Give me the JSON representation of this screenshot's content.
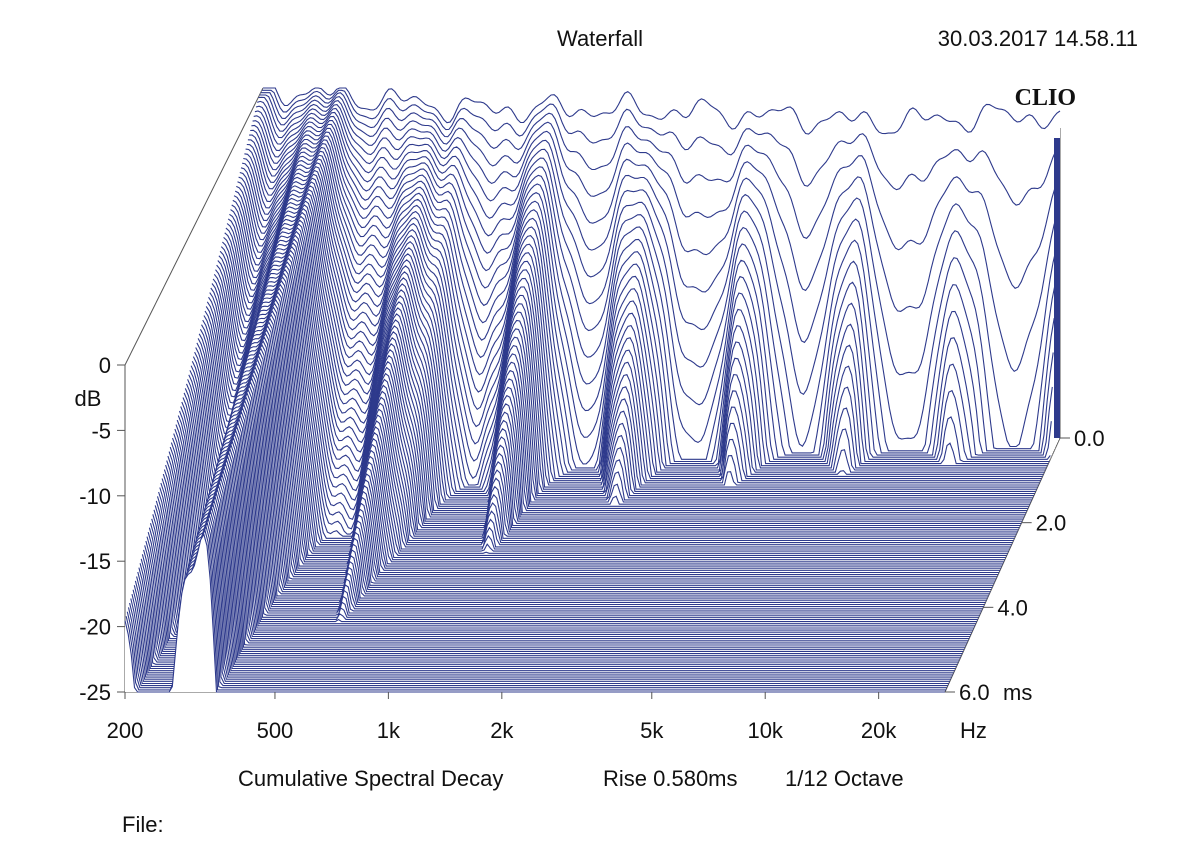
{
  "header": {
    "title": "Waterfall",
    "timestamp": "30.03.2017 14.58.11",
    "logo_text": "CLIO"
  },
  "caption": {
    "method": "Cumulative Spectral Decay",
    "rise": "Rise 0.580ms",
    "smoothing": "1/12 Octave"
  },
  "footer": {
    "file_label": "File:"
  },
  "colors": {
    "trace": "#2e3a8c",
    "axis": "#555555",
    "background": "#ffffff"
  },
  "chart_data": {
    "type": "waterfall",
    "x_axis": {
      "scale": "log",
      "range": [
        200,
        30000
      ],
      "ticks": [
        {
          "value": 200,
          "label": "200"
        },
        {
          "value": 500,
          "label": "500"
        },
        {
          "value": 1000,
          "label": "1k"
        },
        {
          "value": 2000,
          "label": "2k"
        },
        {
          "value": 5000,
          "label": "5k"
        },
        {
          "value": 10000,
          "label": "10k"
        },
        {
          "value": 20000,
          "label": "20k"
        }
      ],
      "unit": "Hz"
    },
    "y_axis": {
      "range": [
        -25,
        0
      ],
      "unit": "dB",
      "ticks": [
        {
          "value": 0,
          "label": "0"
        },
        {
          "value": -5,
          "label": "-5"
        },
        {
          "value": -10,
          "label": "-10"
        },
        {
          "value": -15,
          "label": "-15"
        },
        {
          "value": -20,
          "label": "-20"
        },
        {
          "value": -25,
          "label": "-25"
        }
      ]
    },
    "z_axis": {
      "range": [
        0,
        6
      ],
      "unit": "ms",
      "ticks": [
        {
          "value": 0,
          "label": "0.0"
        },
        {
          "value": 2,
          "label": "2.0"
        },
        {
          "value": 4,
          "label": "4.0"
        },
        {
          "value": 6,
          "label": "6.0"
        }
      ]
    },
    "slice_count": 120,
    "initial_response_db": [
      {
        "hz": 200,
        "db": 0
      },
      {
        "hz": 300,
        "db": -0.5
      },
      {
        "hz": 500,
        "db": -1.0
      },
      {
        "hz": 700,
        "db": -1.5
      },
      {
        "hz": 1000,
        "db": -1.5
      },
      {
        "hz": 2000,
        "db": -1.5
      },
      {
        "hz": 5000,
        "db": -2.0
      },
      {
        "hz": 10000,
        "db": -2.5
      },
      {
        "hz": 20000,
        "db": -2.0
      },
      {
        "hz": 30000,
        "db": -2.0
      }
    ],
    "noise_floor_db": -25
  }
}
